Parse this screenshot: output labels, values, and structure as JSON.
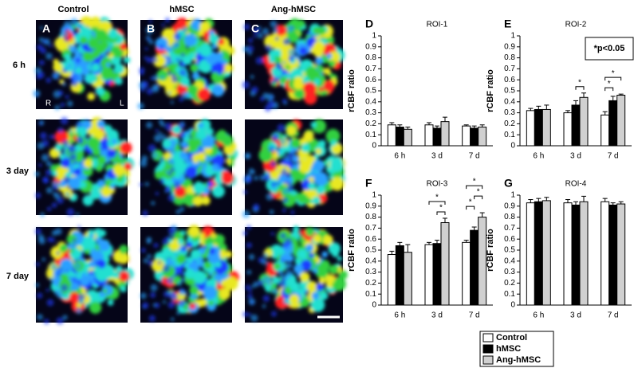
{
  "image_panel": {
    "columns": [
      "Control",
      "hMSC",
      "Ang-hMSC"
    ],
    "rows": [
      "6 h",
      "3 day",
      "7 day"
    ],
    "panel_letters": [
      "A",
      "B",
      "C"
    ],
    "side_left": "R",
    "side_right": "L"
  },
  "chart_data": [
    {
      "type": "bar",
      "panel": "D",
      "title": "ROI-1",
      "y_label": "rCBF ratio",
      "categories": [
        "6 h",
        "3 d",
        "7 d"
      ],
      "series": [
        {
          "color": "#ffffff",
          "values": [
            0.19,
            0.19,
            0.18
          ],
          "errors": [
            0.02,
            0.02,
            0.01
          ]
        },
        {
          "color": "#000000",
          "values": [
            0.17,
            0.16,
            0.16
          ],
          "errors": [
            0.02,
            0.02,
            0.02
          ]
        },
        {
          "color": "#d0d0d0",
          "values": [
            0.15,
            0.22,
            0.17
          ],
          "errors": [
            0.02,
            0.04,
            0.02
          ]
        }
      ],
      "ylim": [
        0,
        1
      ],
      "yticks": [
        0,
        0.1,
        0.2,
        0.3,
        0.4,
        0.5,
        0.6,
        0.7,
        0.8,
        0.9,
        1
      ]
    },
    {
      "type": "bar",
      "panel": "E",
      "title": "ROI-2",
      "y_label": "rCBF ratio",
      "note": "*p<0.05",
      "categories": [
        "6 h",
        "3 d",
        "7 d"
      ],
      "series": [
        {
          "color": "#ffffff",
          "values": [
            0.32,
            0.3,
            0.28
          ],
          "errors": [
            0.02,
            0.02,
            0.03
          ]
        },
        {
          "color": "#000000",
          "values": [
            0.33,
            0.37,
            0.41
          ],
          "errors": [
            0.03,
            0.04,
            0.04
          ]
        },
        {
          "color": "#d0d0d0",
          "values": [
            0.33,
            0.44,
            0.46
          ],
          "errors": [
            0.04,
            0.04,
            0.01
          ]
        }
      ],
      "significance": [
        {
          "category": 1,
          "pair": [
            1,
            2
          ],
          "label": "*"
        },
        {
          "category": 2,
          "pair": [
            0,
            1
          ],
          "label": "*"
        },
        {
          "category": 2,
          "pair": [
            0,
            2
          ],
          "label": "*"
        }
      ],
      "ylim": [
        0,
        1
      ],
      "yticks": [
        0,
        0.1,
        0.2,
        0.3,
        0.4,
        0.5,
        0.6,
        0.7,
        0.8,
        0.9,
        1
      ]
    },
    {
      "type": "bar",
      "panel": "F",
      "title": "ROI-3",
      "y_label": "rCBF ratio",
      "categories": [
        "6 h",
        "3 d",
        "7 d"
      ],
      "series": [
        {
          "color": "#ffffff",
          "values": [
            0.46,
            0.55,
            0.57
          ],
          "errors": [
            0.03,
            0.02,
            0.02
          ]
        },
        {
          "color": "#000000",
          "values": [
            0.54,
            0.56,
            0.68
          ],
          "errors": [
            0.03,
            0.03,
            0.03
          ]
        },
        {
          "color": "#d0d0d0",
          "values": [
            0.48,
            0.75,
            0.8
          ],
          "errors": [
            0.07,
            0.04,
            0.04
          ]
        }
      ],
      "significance": [
        {
          "category": 1,
          "pair": [
            1,
            2
          ],
          "label": "*"
        },
        {
          "category": 1,
          "pair": [
            0,
            2
          ],
          "label": "*"
        },
        {
          "category": 2,
          "pair": [
            0,
            1
          ],
          "label": "*"
        },
        {
          "category": 2,
          "pair": [
            1,
            2
          ],
          "label": "*"
        },
        {
          "category": 2,
          "pair": [
            0,
            2
          ],
          "label": "*"
        }
      ],
      "ylim": [
        0,
        1
      ],
      "yticks": [
        0,
        0.1,
        0.2,
        0.3,
        0.4,
        0.5,
        0.6,
        0.7,
        0.8,
        0.9,
        1
      ]
    },
    {
      "type": "bar",
      "panel": "G",
      "title": "ROI-4",
      "y_label": "rCBF ratio",
      "categories": [
        "6 h",
        "3 d",
        "7 d"
      ],
      "series": [
        {
          "name": "Control",
          "color": "#ffffff",
          "values": [
            0.93,
            0.93,
            0.94
          ],
          "errors": [
            0.03,
            0.03,
            0.03
          ]
        },
        {
          "name": "hMSC",
          "color": "#000000",
          "values": [
            0.94,
            0.91,
            0.91
          ],
          "errors": [
            0.03,
            0.03,
            0.02
          ]
        },
        {
          "name": "Ang-hMSC",
          "color": "#d0d0d0",
          "values": [
            0.95,
            0.94,
            0.92
          ],
          "errors": [
            0.03,
            0.05,
            0.02
          ]
        }
      ],
      "legend": "bottom",
      "ylim": [
        0,
        1
      ],
      "yticks": [
        0,
        0.1,
        0.2,
        0.3,
        0.4,
        0.5,
        0.6,
        0.7,
        0.8,
        0.9,
        1
      ]
    }
  ]
}
